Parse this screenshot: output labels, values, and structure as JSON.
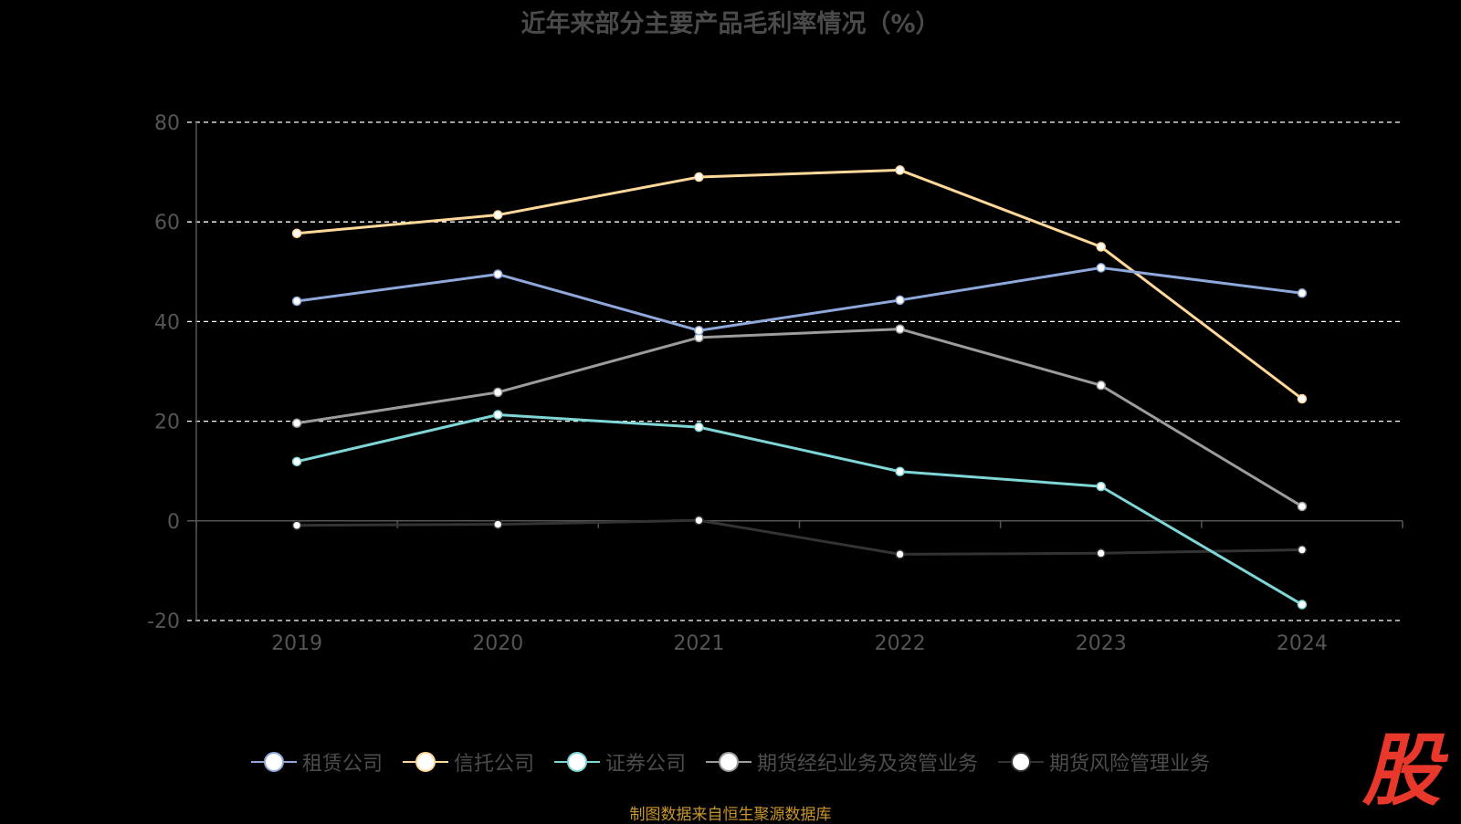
{
  "title": "近年来部分主要产品毛利率情况（%）",
  "source": "制图数据来自恒生聚源数据库",
  "logo_text": "股",
  "colors": {
    "background": "#000000",
    "grid": "#ffffff",
    "axis": "#555555",
    "tick_text": "#555555"
  },
  "chart_data": {
    "type": "line",
    "title": "近年来部分主要产品毛利率情况（%）",
    "x": [
      "2019",
      "2020",
      "2021",
      "2022",
      "2023",
      "2024"
    ],
    "ylim": [
      -20,
      80
    ],
    "yticks": [
      -20,
      0,
      20,
      40,
      60,
      80
    ],
    "grid": true,
    "legend_position": "bottom",
    "series": [
      {
        "name": "租赁公司",
        "color": "#8fa8dc",
        "values": [
          44.1,
          49.5,
          38.2,
          44.3,
          50.8,
          45.7
        ]
      },
      {
        "name": "信托公司",
        "color": "#ffd89a",
        "values": [
          57.7,
          61.4,
          69.0,
          70.4,
          55.0,
          24.5
        ]
      },
      {
        "name": "证券公司",
        "color": "#7fd6d6",
        "values": [
          11.9,
          21.3,
          18.8,
          9.9,
          6.9,
          -16.8
        ]
      },
      {
        "name": "期货经纪业务及资管业务",
        "color": "#9c9c9c",
        "values": [
          19.6,
          25.8,
          36.8,
          38.5,
          27.2,
          2.9
        ]
      },
      {
        "name": "期货风险管理业务",
        "color": "#333333",
        "values": [
          -0.9,
          -0.7,
          0.1,
          -6.7,
          -6.5,
          -5.8
        ]
      }
    ]
  }
}
